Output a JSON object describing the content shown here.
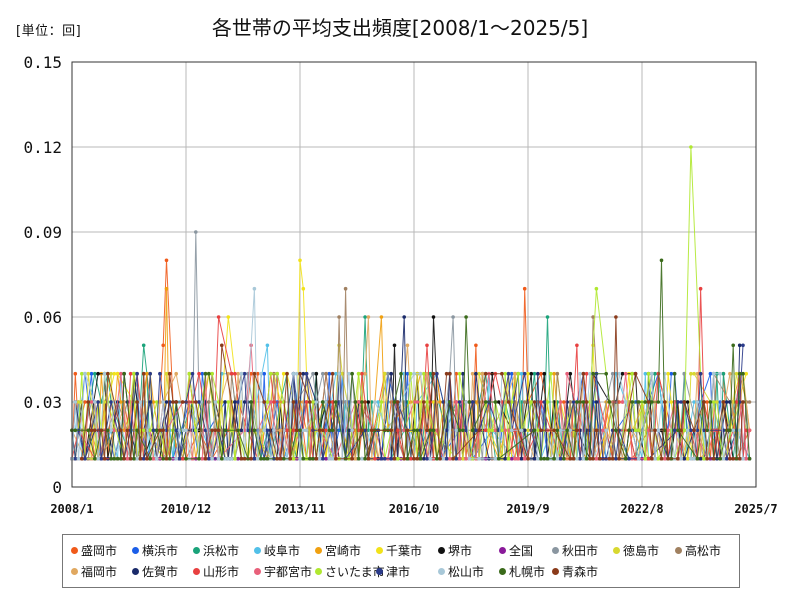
{
  "chart_data": {
    "type": "line",
    "title": "各世帯の平均支出頻度[2008/1～2025/5]",
    "unit_label": "[単位：回]",
    "xlabel": "",
    "ylabel": "",
    "ylim": [
      0,
      0.15
    ],
    "y_ticks": [
      "0",
      "0.03",
      "0.06",
      "0.09",
      "0.12",
      "0.15"
    ],
    "x_tick_labels": [
      "2008/1",
      "2010/12",
      "2013/11",
      "2016/10",
      "2019/9",
      "2022/8",
      "2025/7"
    ],
    "x_range_months": [
      0,
      210
    ],
    "grid": true,
    "legend_position": "bottom",
    "series": [
      {
        "name": "盛岡市",
        "color": "#f05a1a",
        "baseline": 0.01,
        "spikes": [
          [
            29,
            0.08
          ],
          [
            28,
            0.05
          ],
          [
            124,
            0.05
          ],
          [
            139,
            0.07
          ],
          [
            140,
            0.03
          ],
          [
            195,
            0.03
          ]
        ]
      },
      {
        "name": "横浜市",
        "color": "#1b5ee8",
        "baseline": 0.01,
        "spikes": [
          [
            36,
            0.03
          ],
          [
            97,
            0.04
          ],
          [
            160,
            0.03
          ]
        ]
      },
      {
        "name": "浜松市",
        "color": "#1aa37a",
        "baseline": 0.01,
        "spikes": [
          [
            22,
            0.05
          ],
          [
            75,
            0.04
          ],
          [
            90,
            0.06
          ],
          [
            146,
            0.06
          ]
        ]
      },
      {
        "name": "岐阜市",
        "color": "#52c0e8",
        "baseline": 0.01,
        "spikes": [
          [
            60,
            0.05
          ],
          [
            51,
            0.03
          ]
        ]
      },
      {
        "name": "宮崎市",
        "color": "#f0a010",
        "baseline": 0.01,
        "spikes": [
          [
            29,
            0.07
          ],
          [
            95,
            0.06
          ],
          [
            116,
            0.04
          ]
        ]
      },
      {
        "name": "千葉市",
        "color": "#f2e21a",
        "baseline": 0.01,
        "spikes": [
          [
            70,
            0.08
          ],
          [
            71,
            0.07
          ],
          [
            48,
            0.06
          ],
          [
            160,
            0.05
          ]
        ]
      },
      {
        "name": "堺市",
        "color": "#111111",
        "baseline": 0.01,
        "spikes": [
          [
            111,
            0.06
          ],
          [
            99,
            0.05
          ],
          [
            78,
            0.03
          ]
        ]
      },
      {
        "name": "全国",
        "color": "#8a1a9a",
        "baseline": 0.01,
        "spikes": []
      },
      {
        "name": "秋田市",
        "color": "#8a96a0",
        "baseline": 0.01,
        "spikes": [
          [
            38,
            0.09
          ],
          [
            117,
            0.06
          ]
        ]
      },
      {
        "name": "徳島市",
        "color": "#d8d830",
        "baseline": 0.01,
        "spikes": [
          [
            82,
            0.05
          ],
          [
            191,
            0.04
          ]
        ]
      },
      {
        "name": "高松市",
        "color": "#a08060",
        "baseline": 0.01,
        "spikes": [
          [
            84,
            0.07
          ],
          [
            82,
            0.06
          ],
          [
            160,
            0.06
          ]
        ]
      },
      {
        "name": "福岡市",
        "color": "#e0a860",
        "baseline": 0.01,
        "spikes": [
          [
            103,
            0.05
          ],
          [
            91,
            0.06
          ]
        ]
      },
      {
        "name": "佐賀市",
        "color": "#1a2a6a",
        "baseline": 0.01,
        "spikes": [
          [
            102,
            0.06
          ],
          [
            143,
            0.04
          ],
          [
            205,
            0.05
          ]
        ]
      },
      {
        "name": "山形市",
        "color": "#e84040",
        "baseline": 0.01,
        "spikes": [
          [
            45,
            0.06
          ],
          [
            109,
            0.05
          ],
          [
            155,
            0.05
          ],
          [
            193,
            0.07
          ]
        ]
      },
      {
        "name": "宇都宮市",
        "color": "#e8607a",
        "baseline": 0.01,
        "spikes": [
          [
            55,
            0.05
          ],
          [
            128,
            0.04
          ]
        ]
      },
      {
        "name": "さいたま市",
        "color": "#b0e830",
        "baseline": 0.01,
        "spikes": [
          [
            190,
            0.12
          ],
          [
            161,
            0.07
          ]
        ]
      },
      {
        "name": "津市",
        "color": "#2a3a8a",
        "baseline": 0.01,
        "spikes": [
          [
            112,
            0.04
          ],
          [
            206,
            0.05
          ]
        ]
      },
      {
        "name": "松山市",
        "color": "#a8c8d8",
        "baseline": 0.01,
        "spikes": [
          [
            56,
            0.07
          ],
          [
            58,
            0.04
          ]
        ]
      },
      {
        "name": "札幌市",
        "color": "#3a6a1a",
        "baseline": 0.01,
        "spikes": [
          [
            181,
            0.08
          ],
          [
            121,
            0.06
          ],
          [
            203,
            0.05
          ]
        ]
      },
      {
        "name": "青森市",
        "color": "#8a3a1a",
        "baseline": 0.01,
        "spikes": [
          [
            167,
            0.06
          ],
          [
            46,
            0.05
          ]
        ]
      }
    ]
  }
}
